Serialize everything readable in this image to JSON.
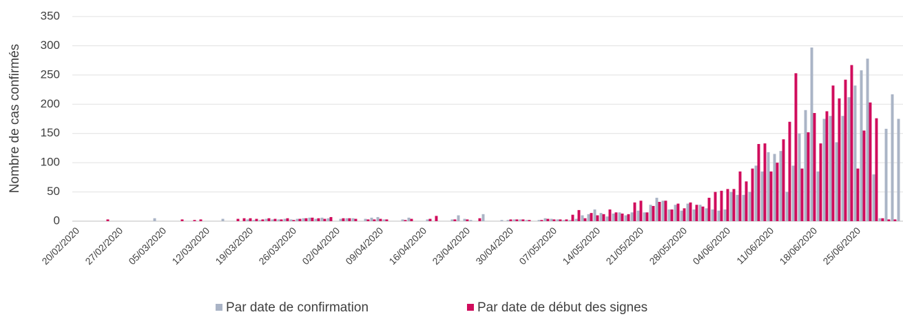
{
  "chart_data": {
    "type": "bar",
    "ylabel": "Nombre de cas confirmés",
    "categories": [
      "20/02/2020",
      null,
      null,
      null,
      null,
      null,
      null,
      "27/02/2020",
      null,
      null,
      null,
      null,
      null,
      null,
      "05/03/2020",
      null,
      null,
      null,
      null,
      null,
      null,
      "12/03/2020",
      null,
      null,
      null,
      null,
      null,
      null,
      "19/03/2020",
      null,
      null,
      null,
      null,
      null,
      null,
      "26/03/2020",
      null,
      null,
      null,
      null,
      null,
      null,
      "02/04/2020",
      null,
      null,
      null,
      null,
      null,
      null,
      "09/04/2020",
      null,
      null,
      null,
      null,
      null,
      null,
      "16/04/2020",
      null,
      null,
      null,
      null,
      null,
      null,
      "23/04/2020",
      null,
      null,
      null,
      null,
      null,
      null,
      "30/04/2020",
      null,
      null,
      null,
      null,
      null,
      null,
      "07/05/2020",
      null,
      null,
      null,
      null,
      null,
      null,
      "14/05/2020",
      null,
      null,
      null,
      null,
      null,
      null,
      "21/05/2020",
      null,
      null,
      null,
      null,
      null,
      null,
      "28/05/2020",
      null,
      null,
      null,
      null,
      null,
      null,
      "04/06/2020",
      null,
      null,
      null,
      null,
      null,
      null,
      "11/06/2020",
      null,
      null,
      null,
      null,
      null,
      null,
      "18/06/2020",
      null,
      null,
      null,
      null,
      null,
      null,
      "25/06/2020",
      null,
      null,
      null,
      null,
      null,
      null,
      null
    ],
    "series": [
      {
        "name": "Par date de confirmation",
        "color": "#aab4c6",
        "values": [
          0,
          0,
          0,
          0,
          0,
          0,
          0,
          0,
          0,
          0,
          0,
          0,
          0,
          5,
          0,
          0,
          0,
          0,
          0,
          0,
          0,
          0,
          0,
          0,
          4,
          0,
          0,
          0,
          3,
          2,
          2,
          4,
          3,
          3,
          4,
          3,
          4,
          5,
          6,
          4,
          6,
          5,
          0,
          4,
          5,
          5,
          0,
          4,
          6,
          7,
          3,
          0,
          0,
          3,
          6,
          0,
          0,
          3,
          0,
          0,
          0,
          3,
          10,
          4,
          2,
          0,
          12,
          0,
          0,
          2,
          2,
          3,
          3,
          2,
          0,
          2,
          5,
          4,
          3,
          2,
          2,
          4,
          10,
          12,
          20,
          14,
          8,
          13,
          15,
          10,
          15,
          18,
          15,
          28,
          40,
          35,
          20,
          28,
          18,
          30,
          20,
          28,
          22,
          20,
          18,
          20,
          50,
          45,
          45,
          50,
          95,
          85,
          118,
          115,
          120,
          50,
          95,
          150,
          190,
          297,
          85,
          175,
          180,
          135,
          180,
          212,
          232,
          258,
          278,
          80,
          5,
          158,
          217,
          175
        ]
      },
      {
        "name": "Par date de début des signes",
        "color": "#d00c5c",
        "values": [
          0,
          0,
          0,
          0,
          0,
          3,
          0,
          0,
          0,
          0,
          0,
          0,
          0,
          0,
          0,
          0,
          0,
          3,
          0,
          2,
          3,
          0,
          0,
          0,
          0,
          0,
          4,
          5,
          5,
          4,
          3,
          5,
          4,
          3,
          5,
          2,
          4,
          5,
          6,
          5,
          4,
          7,
          0,
          5,
          5,
          4,
          0,
          3,
          3,
          4,
          3,
          0,
          0,
          2,
          4,
          0,
          0,
          4,
          9,
          0,
          0,
          3,
          0,
          3,
          0,
          5,
          0,
          0,
          0,
          0,
          3,
          3,
          3,
          2,
          0,
          2,
          4,
          3,
          3,
          3,
          11,
          19,
          5,
          14,
          10,
          12,
          20,
          15,
          13,
          12,
          32,
          35,
          15,
          26,
          33,
          35,
          20,
          30,
          22,
          32,
          28,
          25,
          40,
          50,
          52,
          55,
          55,
          85,
          68,
          90,
          132,
          133,
          85,
          100,
          140,
          170,
          253,
          90,
          152,
          185,
          133,
          188,
          232,
          210,
          242,
          267,
          90,
          155,
          203,
          176,
          5,
          3,
          3,
          0
        ]
      }
    ],
    "ylim": [
      0,
      350
    ],
    "yticks": [
      0,
      50,
      100,
      150,
      200,
      250,
      300,
      350
    ],
    "grid": true,
    "legend": "bottom"
  }
}
